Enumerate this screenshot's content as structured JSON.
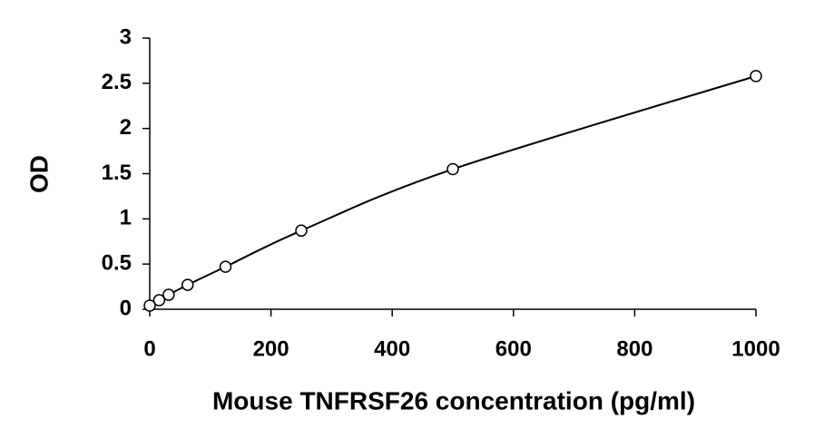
{
  "chart_data": {
    "type": "scatter",
    "x_label": "Mouse TNFRSF26 concentration (pg/ml)",
    "y_label": "OD",
    "x": [
      0,
      15.6,
      31.25,
      62.5,
      125,
      250,
      500,
      1000
    ],
    "values": [
      0.04,
      0.1,
      0.16,
      0.27,
      0.47,
      0.87,
      1.55,
      2.58
    ],
    "color": "#000000",
    "line": true,
    "xlim": [
      0,
      1000
    ],
    "xticks": [
      0,
      200,
      400,
      600,
      800,
      1000
    ],
    "ylim": [
      0,
      3
    ],
    "yticks": [
      0,
      0.5,
      1,
      1.5,
      2,
      2.5,
      3
    ],
    "grid": false
  }
}
